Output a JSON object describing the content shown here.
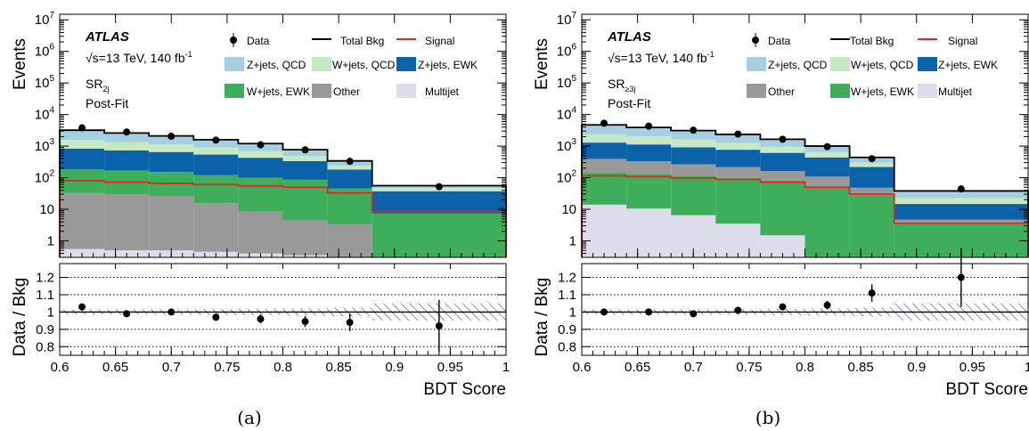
{
  "chart_data": [
    {
      "type": "bar",
      "caption": "(a)",
      "atlas_label": "ATLAS",
      "energy_label": "√s=13 TeV, 140 fb",
      "energy_sup": "-1",
      "region_label": "SR",
      "region_sub": "2j",
      "fit_label": "Post-Fit",
      "ylabel_top": "Events",
      "ylabel_bottom": "Data / Bkg",
      "xlabel": "BDT Score",
      "xlim": [
        0.6,
        1.0
      ],
      "ylim_top": [
        0.3,
        15000000
      ],
      "ylog": true,
      "ylim_bottom": [
        0.75,
        1.28
      ],
      "bin_edges": [
        0.6,
        0.64,
        0.68,
        0.72,
        0.76,
        0.8,
        0.84,
        0.88,
        1.0
      ],
      "stack": [
        {
          "name": "Multijet",
          "color": "#dcdcea",
          "values": [
            0.55,
            0.5,
            0.5,
            0.45,
            0.4,
            0.35,
            0.3,
            0.0
          ]
        },
        {
          "name": "Other",
          "color": "#999999",
          "values": [
            32,
            29,
            26,
            15,
            8,
            4,
            3,
            0.3
          ]
        },
        {
          "name": "W+jets, EWK",
          "color": "#3fae5c",
          "values": [
            150,
            140,
            125,
            105,
            90,
            82,
            42,
            7
          ]
        },
        {
          "name": "Z+jets, EWK",
          "color": "#0b62a8",
          "values": [
            650,
            560,
            500,
            420,
            330,
            250,
            135,
            30
          ]
        },
        {
          "name": "W+jets, QCD",
          "color": "#c6e8c4",
          "values": [
            750,
            600,
            480,
            360,
            260,
            150,
            60,
            10
          ]
        },
        {
          "name": "Z+jets, QCD",
          "color": "#a6cfe2",
          "values": [
            1550,
            1250,
            950,
            700,
            500,
            280,
            100,
            8
          ]
        }
      ],
      "total_bkg": [
        3200,
        2600,
        2100,
        1600,
        1200,
        770,
        340,
        56
      ],
      "signal": [
        80,
        72,
        66,
        60,
        55,
        50,
        33,
        8.5
      ],
      "data": {
        "x": [
          0.62,
          0.66,
          0.7,
          0.74,
          0.78,
          0.82,
          0.86,
          0.94
        ],
        "y": [
          3800,
          2800,
          2050,
          1550,
          1100,
          760,
          330,
          52
        ]
      },
      "ratio": {
        "y": [
          1.03,
          0.99,
          1.0,
          0.97,
          0.96,
          0.945,
          0.94,
          0.92
        ],
        "err": [
          0.012,
          0.012,
          0.013,
          0.02,
          0.026,
          0.032,
          0.05,
          0.15
        ],
        "band": [
          0.015,
          0.015,
          0.015,
          0.017,
          0.018,
          0.02,
          0.025,
          0.05
        ]
      },
      "y_ticks_top": [
        "10",
        "10",
        "10",
        "10",
        "10",
        "10",
        "10",
        "1"
      ],
      "y_ticks_top_exp": [
        "7",
        "6",
        "5",
        "4",
        "3",
        "2",
        "",
        ""
      ],
      "y_ticks_bottom": [
        "1.2",
        "1.1",
        "1",
        "0.9",
        "0.8"
      ],
      "x_ticks": [
        "0.6",
        "0.65",
        "0.7",
        "0.75",
        "0.8",
        "0.85",
        "0.9",
        "0.95",
        "1"
      ],
      "legend": {
        "data": "Data",
        "total": "Total Bkg",
        "signal": "Signal",
        "zqcd": "Z+jets, QCD",
        "wqcd": "W+jets, QCD",
        "zewk": "Z+jets, EWK",
        "wewk": "W+jets, EWK",
        "other": "Other",
        "multijet": "Multijet"
      }
    },
    {
      "type": "bar",
      "caption": "(b)",
      "atlas_label": "ATLAS",
      "energy_label": "√s=13 TeV, 140 fb",
      "energy_sup": "-1",
      "region_label": "SR",
      "region_sub": "≥3j",
      "fit_label": "Post-Fit",
      "ylabel_top": "Events",
      "ylabel_bottom": "Data / Bkg",
      "xlabel": "BDT Score",
      "xlim": [
        0.6,
        1.0
      ],
      "ylim_top": [
        0.3,
        15000000
      ],
      "ylog": true,
      "ylim_bottom": [
        0.75,
        1.28
      ],
      "bin_edges": [
        0.6,
        0.64,
        0.68,
        0.72,
        0.76,
        0.8,
        0.84,
        0.88,
        1.0
      ],
      "stack": [
        {
          "name": "Multijet",
          "color": "#dcdcea",
          "values": [
            14,
            10.5,
            6.5,
            3.5,
            1.5,
            0.3,
            0.0,
            0.0
          ]
        },
        {
          "name": "W+jets, EWK",
          "color": "#3fae5c",
          "values": [
            130,
            120,
            110,
            95,
            80,
            48,
            28,
            3.7
          ]
        },
        {
          "name": "Other",
          "color": "#999999",
          "values": [
            250,
            200,
            150,
            120,
            80,
            60,
            20,
            1
          ]
        },
        {
          "name": "Z+jets, EWK",
          "color": "#0b62a8",
          "values": [
            900,
            800,
            650,
            550,
            450,
            330,
            170,
            10
          ]
        },
        {
          "name": "W+jets, QCD",
          "color": "#c6e8c4",
          "values": [
            1100,
            900,
            700,
            500,
            350,
            210,
            80,
            8
          ]
        },
        {
          "name": "Z+jets, QCD",
          "color": "#a6cfe2",
          "values": [
            2300,
            1900,
            1500,
            1100,
            720,
            400,
            150,
            17
          ]
        }
      ],
      "total_bkg": [
        4700,
        3900,
        3100,
        2350,
        1650,
        1000,
        440,
        38
      ],
      "signal": [
        115,
        108,
        98,
        88,
        72,
        50,
        30,
        3.6
      ],
      "data": {
        "x": [
          0.62,
          0.66,
          0.7,
          0.74,
          0.78,
          0.82,
          0.86,
          0.94
        ],
        "y": [
          5300,
          4300,
          3200,
          2400,
          1650,
          960,
          400,
          44
        ]
      },
      "ratio": {
        "y": [
          1.0,
          1.0,
          0.99,
          1.01,
          1.03,
          1.04,
          1.11,
          1.2
        ],
        "err": [
          0.01,
          0.01,
          0.012,
          0.015,
          0.02,
          0.025,
          0.05,
          0.17
        ],
        "band": [
          0.015,
          0.015,
          0.015,
          0.016,
          0.018,
          0.02,
          0.025,
          0.05
        ]
      },
      "y_ticks_top": [
        "10",
        "10",
        "10",
        "10",
        "10",
        "10",
        "10",
        "1"
      ],
      "y_ticks_top_exp": [
        "7",
        "6",
        "5",
        "4",
        "3",
        "2",
        "",
        ""
      ],
      "y_ticks_bottom": [
        "1.2",
        "1.1",
        "1",
        "0.9",
        "0.8"
      ],
      "x_ticks": [
        "0.6",
        "0.65",
        "0.7",
        "0.75",
        "0.8",
        "0.85",
        "0.9",
        "0.95",
        "1"
      ],
      "legend": {
        "data": "Data",
        "total": "Total Bkg",
        "signal": "Signal",
        "zqcd": "Z+jets, QCD",
        "wqcd": "W+jets, QCD",
        "zewk": "Z+jets, EWK",
        "other": "Other",
        "wewk": "W+jets, EWK",
        "multijet": "Multijet"
      }
    }
  ]
}
